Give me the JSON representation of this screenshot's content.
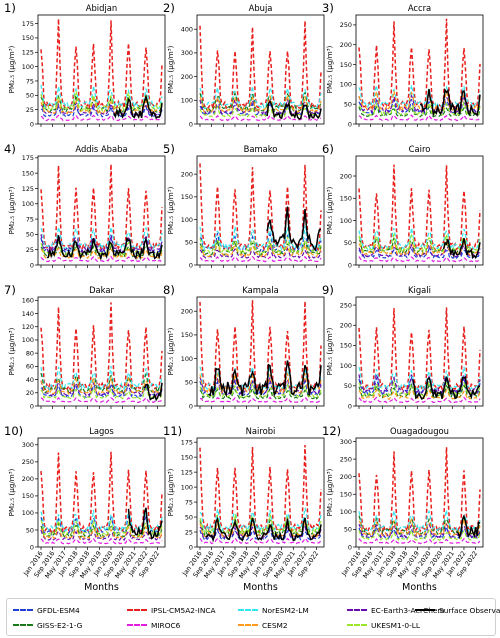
{
  "figure": {
    "xlabel": "Months",
    "x_ticks": [
      "Jan 2016",
      "Sep 2016",
      "May 2017",
      "Jan 2018",
      "Sep 2018",
      "May 2019",
      "Jan 2020",
      "Sep 2020",
      "May 2021",
      "Jan 2022",
      "Sep 2022"
    ]
  },
  "legend": [
    {
      "name": "GFDL-ESM4",
      "color": "#1f3fd6",
      "style": "dash"
    },
    {
      "name": "IPSL-CM5A2-INCA",
      "color": "#e8201e",
      "style": "dash"
    },
    {
      "name": "NorESM2-LM",
      "color": "#33e6f0",
      "style": "dash"
    },
    {
      "name": "EC-Earth3-AerChem",
      "color": "#6a0dad",
      "style": "dash"
    },
    {
      "name": "Surface Observation",
      "color": "#000000",
      "style": "solid"
    },
    {
      "name": "GISS-E2-1-G",
      "color": "#1a7a1a",
      "style": "dash"
    },
    {
      "name": "MIROC6",
      "color": "#e11be0",
      "style": "dash"
    },
    {
      "name": "CESM2",
      "color": "#ff9a1a",
      "style": "dash"
    },
    {
      "name": "UKESM1-0-LL",
      "color": "#9be62a",
      "style": "dash"
    }
  ],
  "chart_data": [
    {
      "type": "line",
      "panel": "1)",
      "title": "Abidjan",
      "ylabel": "PM₂.₅ (μg/m³)",
      "ylim": [
        0,
        190
      ],
      "yticks": [
        0,
        25,
        50,
        75,
        100,
        125,
        150,
        175
      ],
      "peak": 185,
      "obs_level": 30,
      "obs_start": 0.6
    },
    {
      "type": "line",
      "panel": "2)",
      "title": "Abuja",
      "ylabel": "PM₂.₅ (μg/m³)",
      "ylim": [
        0,
        460
      ],
      "yticks": [
        0,
        100,
        200,
        300,
        400
      ],
      "peak": 440,
      "obs_level": 60,
      "obs_start": 0.55
    },
    {
      "type": "line",
      "panel": "3)",
      "title": "Accra",
      "ylabel": "PM₂.₅ (μg/m³)",
      "ylim": [
        0,
        275
      ],
      "yticks": [
        0,
        50,
        100,
        150,
        200,
        250
      ],
      "peak": 270,
      "obs_level": 60,
      "obs_start": 0.5
    },
    {
      "type": "line",
      "panel": "4)",
      "title": "Addis Ababa",
      "ylabel": "PM₂.₅ (μg/m³)",
      "ylim": [
        0,
        178
      ],
      "yticks": [
        0,
        25,
        50,
        75,
        100,
        125,
        150,
        175
      ],
      "peak": 170,
      "obs_level": 30,
      "obs_start": 0.05
    },
    {
      "type": "line",
      "panel": "5)",
      "title": "Bamako",
      "ylabel": "PM₂.₅ (μg/m³)",
      "ylim": [
        0,
        240
      ],
      "yticks": [
        0,
        50,
        100,
        150,
        200
      ],
      "peak": 230,
      "obs_level": 80,
      "obs_start": 0.55
    },
    {
      "type": "line",
      "panel": "6)",
      "title": "Cairo",
      "ylabel": "PM₂.₅ (μg/m³)",
      "ylim": [
        0,
        245
      ],
      "yticks": [
        0,
        50,
        100,
        150,
        200
      ],
      "peak": 230,
      "obs_level": 40,
      "obs_start": 0.7
    },
    {
      "type": "line",
      "panel": "7)",
      "title": "Dakar",
      "ylabel": "PM₂.₅ (μg/m³)",
      "ylim": [
        0,
        165
      ],
      "yticks": [
        0,
        20,
        40,
        60,
        80,
        100,
        120,
        140,
        160
      ],
      "peak": 162,
      "obs_level": 25,
      "obs_start": 0.85
    },
    {
      "type": "line",
      "panel": "8)",
      "title": "Kampala",
      "ylabel": "PM₂.₅ (μg/m³)",
      "ylim": [
        0,
        230
      ],
      "yticks": [
        0,
        50,
        100,
        150,
        200
      ],
      "peak": 225,
      "obs_level": 60,
      "obs_start": 0.08
    },
    {
      "type": "line",
      "panel": "9)",
      "title": "Kigali",
      "ylabel": "PM₂.₅ (μg/m³)",
      "ylim": [
        0,
        270
      ],
      "yticks": [
        0,
        50,
        100,
        150,
        200,
        250
      ],
      "peak": 260,
      "obs_level": 50,
      "obs_start": 0.45
    },
    {
      "type": "line",
      "panel": "10)",
      "title": "Lagos",
      "ylabel": "PM₂.₅ (μg/m³)",
      "ylim": [
        0,
        320
      ],
      "yticks": [
        0,
        50,
        100,
        150,
        200,
        250,
        300
      ],
      "peak": 300,
      "obs_level": 70,
      "obs_start": 0.72
    },
    {
      "type": "line",
      "panel": "11)",
      "title": "Nairobi",
      "ylabel": "PM₂.₅ (μg/m³)",
      "ylim": [
        0,
        182
      ],
      "yticks": [
        0,
        25,
        50,
        75,
        100,
        125,
        150,
        175
      ],
      "peak": 178,
      "obs_level": 30,
      "obs_start": 0.05
    },
    {
      "type": "line",
      "panel": "12)",
      "title": "Ouagadougou",
      "ylabel": "PM₂.₅ (μg/m³)",
      "ylim": [
        0,
        310
      ],
      "yticks": [
        0,
        50,
        100,
        150,
        200,
        250,
        300
      ],
      "peak": 290,
      "obs_level": 70,
      "obs_start": 0.8
    }
  ]
}
